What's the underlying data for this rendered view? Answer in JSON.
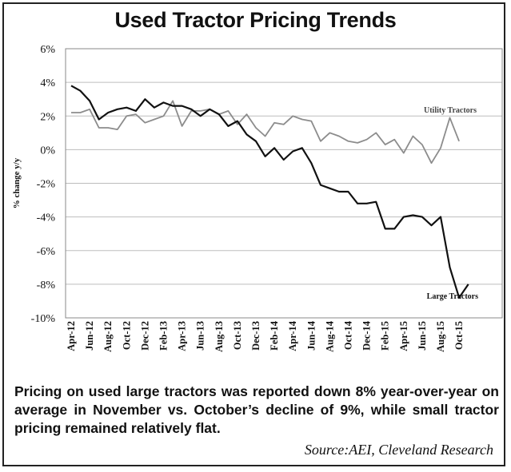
{
  "chart_data": {
    "type": "line",
    "title": "Used Tractor Pricing Trends",
    "ylabel": "% change y/y",
    "xlabel": "",
    "ylim": [
      -10,
      6
    ],
    "yticks": [
      6,
      4,
      2,
      0,
      -2,
      -4,
      -6,
      -8,
      -10
    ],
    "ytick_labels": [
      "6%",
      "4%",
      "2%",
      "0%",
      "-2%",
      "-4%",
      "-6%",
      "-8%",
      "-10%"
    ],
    "x_tick_labels": [
      "Apr-12",
      "Jun-12",
      "Aug-12",
      "Oct-12",
      "Dec-12",
      "Feb-13",
      "Apr-13",
      "Jun-13",
      "Aug-13",
      "Oct-13",
      "Dec-13",
      "Feb-14",
      "Apr-14",
      "Jun-14",
      "Aug-14",
      "Oct-14",
      "Dec-14",
      "Feb-15",
      "Apr-15",
      "Jun-15",
      "Aug-15",
      "Oct-15"
    ],
    "grid": true,
    "series": [
      {
        "name": "Utility Tractors",
        "label": "Utility Tractors",
        "color": "#8c8c8c",
        "values": [
          2.2,
          2.2,
          2.4,
          1.3,
          1.3,
          1.2,
          2.0,
          2.1,
          1.6,
          1.8,
          2.0,
          2.9,
          1.4,
          2.3,
          2.3,
          2.4,
          2.1,
          2.3,
          1.5,
          2.1,
          1.3,
          0.8,
          1.6,
          1.5,
          2.0,
          1.8,
          1.7,
          0.5,
          1.0,
          0.8,
          0.5,
          0.4,
          0.6,
          1.0,
          0.3,
          0.6,
          -0.2,
          0.8,
          0.3,
          -0.8,
          0.1,
          1.9,
          0.5
        ]
      },
      {
        "name": "Large Tractors",
        "label": "Large Tractors",
        "color": "#111111",
        "values": [
          3.8,
          3.5,
          2.9,
          1.8,
          2.2,
          2.4,
          2.5,
          2.3,
          3.0,
          2.5,
          2.8,
          2.6,
          2.6,
          2.4,
          2.0,
          2.4,
          2.1,
          1.4,
          1.7,
          0.9,
          0.5,
          -0.4,
          0.1,
          -0.6,
          -0.1,
          0.1,
          -0.8,
          -2.1,
          -2.3,
          -2.5,
          -2.5,
          -3.2,
          -3.2,
          -3.1,
          -4.7,
          -4.7,
          -4.0,
          -3.9,
          -4.0,
          -4.5,
          -4.0,
          -7.0,
          -8.8,
          -8.0
        ]
      }
    ]
  },
  "caption": "Pricing on used large tractors was reported down 8% year-over-year on average in November vs. October’s decline of 9%, while small tractor pricing remained relatively flat.",
  "source": "Source:AEI, Cleveland Research"
}
